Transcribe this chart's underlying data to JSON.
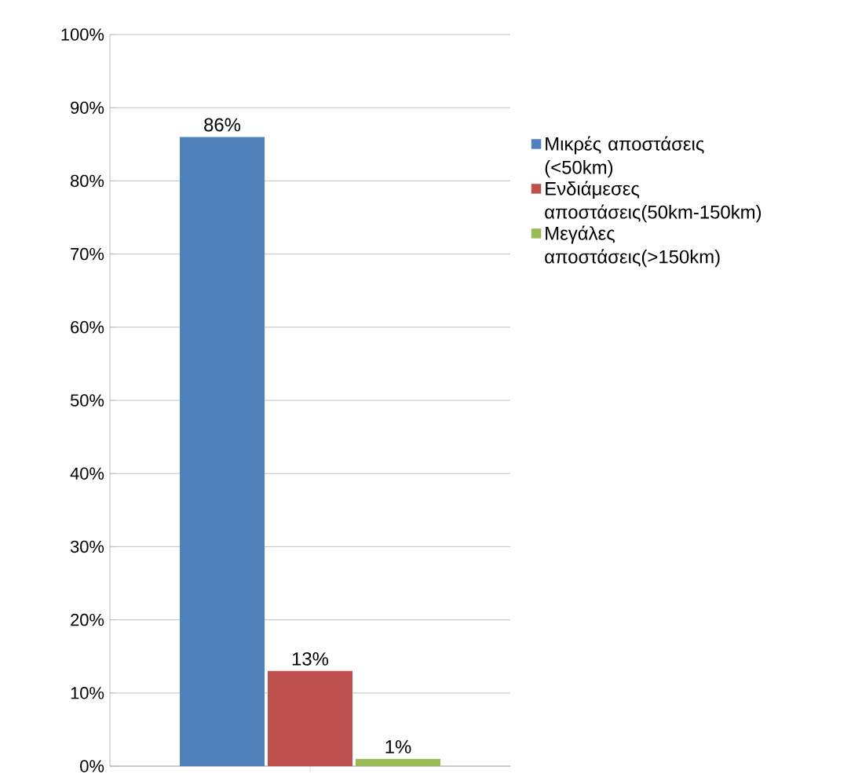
{
  "chart_data": {
    "type": "bar",
    "categories": [
      null
    ],
    "series": [
      {
        "name": "Μικρές αποστάσεις (<50km)",
        "color": "#4f81bd",
        "values": [
          86
        ],
        "value_labels": [
          "86%"
        ]
      },
      {
        "name": "Ενδιάμεσες αποστάσεις(50km-150km)",
        "color": "#c0504d",
        "values": [
          13
        ],
        "value_labels": [
          "13%"
        ]
      },
      {
        "name": "Μεγάλες αποστάσεις(>150km)",
        "color": "#9bbb59",
        "values": [
          1
        ],
        "value_labels": [
          "1%"
        ]
      }
    ],
    "ylim": [
      0,
      100
    ],
    "yticks": [
      {
        "value": 0,
        "label": "0%"
      },
      {
        "value": 10,
        "label": "10%"
      },
      {
        "value": 20,
        "label": "20%"
      },
      {
        "value": 30,
        "label": "30%"
      },
      {
        "value": 40,
        "label": "40%"
      },
      {
        "value": 50,
        "label": "50%"
      },
      {
        "value": 60,
        "label": "60%"
      },
      {
        "value": 70,
        "label": "70%"
      },
      {
        "value": 80,
        "label": "80%"
      },
      {
        "value": 90,
        "label": "90%"
      },
      {
        "value": 100,
        "label": "100%"
      }
    ],
    "grid": "y",
    "legend": "right"
  }
}
